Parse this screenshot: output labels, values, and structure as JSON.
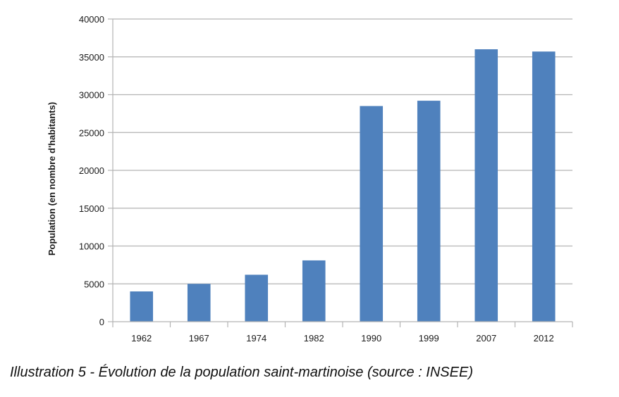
{
  "caption": "Illustration 5 - Évolution de la population saint-martinoise (source : INSEE)",
  "chart_data": {
    "type": "bar",
    "categories": [
      "1962",
      "1967",
      "1974",
      "1982",
      "1990",
      "1999",
      "2007",
      "2012"
    ],
    "values": [
      4000,
      5000,
      6200,
      8100,
      28500,
      29200,
      36000,
      35700
    ],
    "title": "",
    "xlabel": "",
    "ylabel": "Population (en nombre d'habitants)",
    "ylim": [
      0,
      40000
    ],
    "yticks": [
      0,
      5000,
      10000,
      15000,
      20000,
      25000,
      30000,
      35000,
      40000
    ],
    "grid": true,
    "legend": "none",
    "bar_color": "#4f81bd",
    "grid_color": "#b3b3b3"
  }
}
